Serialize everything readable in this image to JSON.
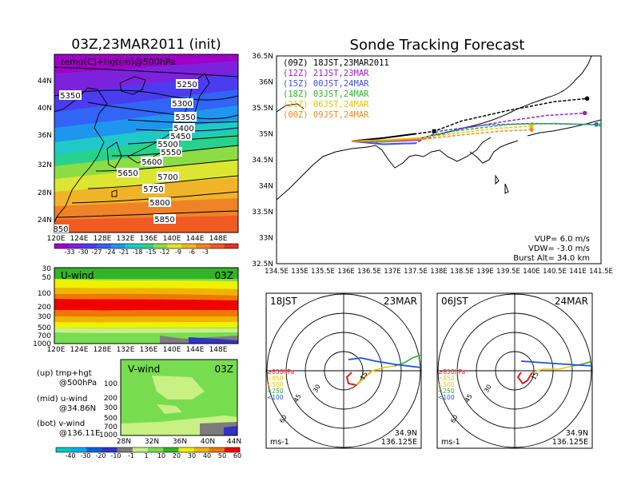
{
  "colors": {
    "temp_scale": [
      "#a000c8",
      "#7c22dc",
      "#4b3cf0",
      "#3264f5",
      "#1e96f0",
      "#20c8c8",
      "#28d28c",
      "#8cdc46",
      "#dce632",
      "#f0b428",
      "#f08228",
      "#f05a23",
      "#e6321e"
    ],
    "wind_scale": [
      "#00c8c8",
      "#00aaf0",
      "#0064d2",
      "#3232c8",
      "#7c7c7c",
      "#c8f082",
      "#78dc50",
      "#32b428",
      "#f0f000",
      "#f0b400",
      "#f07800",
      "#f00000"
    ],
    "track_09z": "#000000",
    "track_12z": "#a020c8",
    "track_15z": "#3c50e6",
    "track_18z": "#28b428",
    "track_21z": "#e6c800",
    "track_00z": "#f08c28",
    "hodo_lt850": "#e61e1e",
    "hodo_lt500": "#e6c800",
    "hodo_lt250": "#28b428",
    "hodo_lt100": "#1e50e6"
  },
  "map_panel": {
    "title": "03Z,23MAR2011 (init)",
    "label": "temp(C)+hgt(m)@500hPa",
    "lat_labels": [
      "44N",
      "40N",
      "36N",
      "32N",
      "28N",
      "24N"
    ],
    "lon_labels": [
      "120E",
      "124E",
      "128E",
      "132E",
      "136E",
      "140E",
      "144E",
      "148E"
    ],
    "height_labels": [
      "5250",
      "5300",
      "5350",
      "5350",
      "5400",
      "5450",
      "5500",
      "5550",
      "5600",
      "5650",
      "5700",
      "5750",
      "5800",
      "5850",
      "850"
    ],
    "temp_ticks": [
      "-33",
      "-30",
      "-27",
      "-24",
      "-21",
      "-18",
      "-15",
      "-12",
      "-9",
      "-6",
      "-3"
    ]
  },
  "u_panel": {
    "label": "U-wind",
    "time": "03Z",
    "p_labels": [
      "30",
      "50",
      "100",
      "200",
      "300",
      "500",
      "700",
      "1000"
    ],
    "lon_labels": [
      "120E",
      "124E",
      "128E",
      "132E",
      "136E",
      "140E",
      "144E",
      "148E"
    ]
  },
  "v_panel": {
    "label": "V-wind",
    "time": "03Z",
    "p_labels": [
      "100",
      "200",
      "300",
      "500",
      "700",
      "1000"
    ],
    "lat_labels": [
      "28N",
      "32N",
      "36N",
      "40N",
      "44N"
    ],
    "wind_ticks": [
      "-40",
      "-30",
      "-20",
      "-10",
      "-1",
      "1",
      "10",
      "20",
      "30",
      "40",
      "50",
      "60"
    ]
  },
  "notes": {
    "up1": "(up) tmp+hgt",
    "up2": "@500hPa",
    "mid1": "(mid) u-wind",
    "mid2": "@34.86N",
    "bot1": "(bot) v-wind",
    "bot2": "@136.11E"
  },
  "chart_data": {
    "type": "line",
    "title": "Sonde Tracking Forecast",
    "xlabel": "",
    "ylabel": "",
    "xlim": [
      134.5,
      141.5
    ],
    "ylim": [
      32.5,
      36.5
    ],
    "x_ticks": [
      "134.5E",
      "135E",
      "135.5E",
      "136E",
      "136.5E",
      "137E",
      "137.5E",
      "138E",
      "138.5E",
      "139E",
      "139.5E",
      "140E",
      "140.5E",
      "141E",
      "141.5E"
    ],
    "y_ticks": [
      "32.5N",
      "33N",
      "33.5N",
      "34N",
      "34.5N",
      "35N",
      "35.5N",
      "36N",
      "36.5N"
    ],
    "legend": [
      "(09Z)  18JST,23MAR2011",
      "(12Z)  21JST,23MAR",
      "(15Z)  00JST,24MAR",
      "(18Z)  03JST,24MAR",
      "(21Z)  06JST,24MAR",
      "(00Z)  09JST,24MAR"
    ],
    "legend_position": "top-left",
    "params": [
      "VUP=  6.0  m/s",
      "VDW= -3.0  m/s",
      "Burst Alt=  34.0  km"
    ],
    "series": [
      {
        "name": "(09Z)  18JST,23MAR2011",
        "color": "#000000",
        "x": [
          136.12,
          136.8,
          137.5,
          137.9,
          138.5,
          139.5,
          140.5,
          141.2
        ],
        "y": [
          34.86,
          34.92,
          35.0,
          35.05,
          35.25,
          35.45,
          35.62,
          35.68
        ]
      },
      {
        "name": "(12Z)  21JST,23MAR",
        "color": "#a020c8",
        "x": [
          136.12,
          136.8,
          137.6,
          138.5,
          139.5,
          140.3,
          141.15
        ],
        "y": [
          34.86,
          34.85,
          34.88,
          35.1,
          35.25,
          35.35,
          35.4
        ]
      },
      {
        "name": "(15Z)  00JST,24MAR",
        "color": "#3c50e6",
        "x": [
          136.12,
          136.8,
          137.5,
          138.0,
          139.0,
          140.0,
          141.4
        ],
        "y": [
          34.86,
          34.8,
          34.82,
          35.05,
          35.17,
          35.2,
          35.18
        ]
      },
      {
        "name": "(18Z)  03JST,24MAR",
        "color": "#28b428",
        "x": [
          136.12,
          136.8,
          137.5,
          138.3,
          139.5,
          140.5,
          141.5
        ],
        "y": [
          34.86,
          34.85,
          34.9,
          35.05,
          35.18,
          35.2,
          35.17
        ]
      },
      {
        "name": "(21Z)  06JST,24MAR",
        "color": "#e6c800",
        "x": [
          136.12,
          136.9,
          137.6,
          138.3,
          139.2,
          140.0
        ],
        "y": [
          34.86,
          34.88,
          34.92,
          35.0,
          35.1,
          35.15
        ]
      },
      {
        "name": "(00Z)  09JST,24MAR",
        "color": "#f08c28",
        "x": [
          136.12,
          136.9,
          137.7,
          138.5,
          139.3,
          140.0
        ],
        "y": [
          34.86,
          34.87,
          34.9,
          34.98,
          35.05,
          35.08
        ]
      }
    ]
  },
  "hodographs": [
    {
      "left_label": "18JST",
      "right_label": "23MAR",
      "rings": [
        "15",
        "30",
        "45",
        "60"
      ],
      "legend": [
        "≥850hPa",
        "<850",
        "<500",
        "<250",
        "<100"
      ],
      "coords1": "34.9N",
      "coords2": "136.125E",
      "unit": "ms-1"
    },
    {
      "left_label": "06JST",
      "right_label": "24MAR",
      "rings": [
        "15",
        "30",
        "45",
        "60"
      ],
      "legend": [
        "≥850hPa",
        "<850",
        "<500",
        "<250",
        "<100"
      ],
      "coords1": "34.9N",
      "coords2": "136.125E",
      "unit": "ms-1"
    }
  ]
}
